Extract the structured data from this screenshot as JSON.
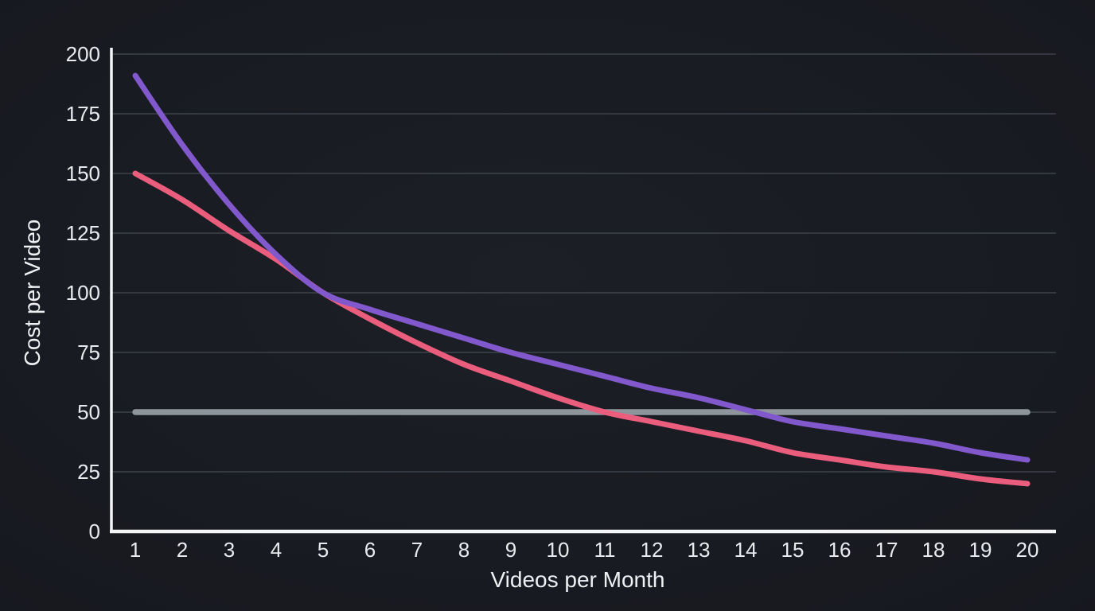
{
  "chart_data": {
    "type": "line",
    "title": "",
    "xlabel": "Videos per Month",
    "ylabel": "Cost per Video",
    "x": [
      1,
      2,
      3,
      4,
      5,
      6,
      7,
      8,
      9,
      10,
      11,
      12,
      13,
      14,
      15,
      16,
      17,
      18,
      19,
      20
    ],
    "xticks": [
      1,
      2,
      3,
      4,
      5,
      6,
      7,
      8,
      9,
      10,
      11,
      12,
      13,
      14,
      15,
      16,
      17,
      18,
      19,
      20
    ],
    "yticks": [
      0,
      25,
      50,
      75,
      100,
      125,
      150,
      175,
      200
    ],
    "xlim": [
      1,
      20
    ],
    "ylim": [
      0,
      200
    ],
    "grid": true,
    "legend": "none",
    "series": [
      {
        "name": "flat-gray-line",
        "color": "#8f959d",
        "stroke_width": 7.5,
        "values": [
          50,
          50,
          50,
          50,
          50,
          50,
          50,
          50,
          50,
          50,
          50,
          50,
          50,
          50,
          50,
          50,
          50,
          50,
          50,
          50
        ]
      },
      {
        "name": "pink-curve",
        "color": "#eb5d7d",
        "stroke_width": 7,
        "values": [
          150,
          139,
          126,
          114,
          100,
          89,
          79,
          70,
          63,
          56,
          50,
          46,
          42,
          38,
          33,
          30,
          27,
          25,
          22,
          20
        ]
      },
      {
        "name": "purple-curve",
        "color": "#8159cc",
        "stroke_width": 7,
        "values": [
          191,
          162,
          137,
          116,
          100,
          93,
          87,
          81,
          75,
          70,
          65,
          60,
          56,
          51,
          46,
          43,
          40,
          37,
          33,
          30
        ]
      }
    ],
    "colors": {
      "background_center": "#1c1f26",
      "background_edge": "#16181e",
      "grid": "#4a4f58",
      "axis": "#f4f5f7",
      "text": "#e8eaee"
    }
  }
}
